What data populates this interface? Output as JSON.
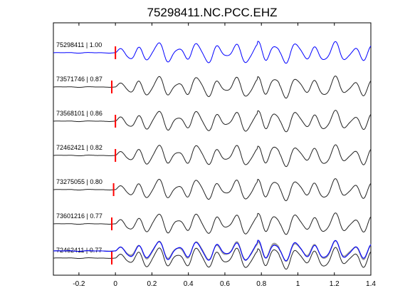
{
  "chart_data": {
    "type": "line",
    "title": "75298411.NC.PCC.EHZ",
    "xlabel": "",
    "ylabel": "",
    "xlim": [
      -0.34,
      1.4
    ],
    "xticks": [
      -0.2,
      0,
      0.2,
      0.4,
      0.6,
      0.8,
      1,
      1.2,
      1.4
    ],
    "xtick_labels": [
      "-0.2",
      "0",
      "0.2",
      "0.4",
      "0.6",
      "0.8",
      "1",
      "1.2",
      "1.4"
    ],
    "grid": false,
    "pick_time": 0,
    "colors": {
      "reference": "#0000ff",
      "trace": "#222222",
      "pick": "#ff0000",
      "overlay": "#9a9a9a"
    },
    "traces": [
      {
        "label": "75298411 | 1.00",
        "id": "75298411",
        "correlation": 1.0,
        "pick_offset": 0.0,
        "reference": true
      },
      {
        "label": "73571746 | 0.87",
        "id": "73571746",
        "correlation": 0.87,
        "pick_offset": -0.02,
        "reference": false
      },
      {
        "label": "73568101 | 0.86",
        "id": "73568101",
        "correlation": 0.86,
        "pick_offset": 0.0,
        "reference": false
      },
      {
        "label": "72462421 | 0.82",
        "id": "72462421",
        "correlation": 0.82,
        "pick_offset": 0.0,
        "reference": false
      },
      {
        "label": "73275055 | 0.80",
        "id": "73275055",
        "correlation": 0.8,
        "pick_offset": -0.01,
        "reference": false
      },
      {
        "label": "73601216 | 0.77",
        "id": "73601216",
        "correlation": 0.77,
        "pick_offset": -0.02,
        "reference": false
      },
      {
        "label": "72462411 | 0.77",
        "id": "72462411",
        "correlation": 0.77,
        "pick_offset": -0.02,
        "reference": false
      }
    ],
    "wave_peaks_seconds": [
      0.1,
      0.2,
      0.3,
      0.42,
      0.52,
      0.62,
      0.72,
      0.85,
      0.92,
      1.0,
      1.12,
      1.22,
      1.35
    ],
    "overlay_label": ""
  }
}
